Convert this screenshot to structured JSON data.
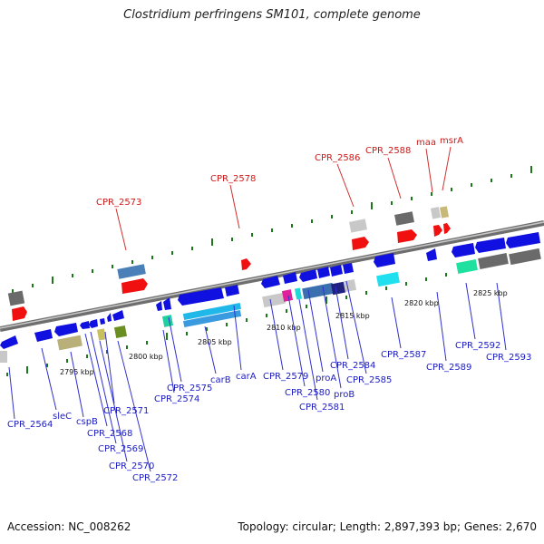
{
  "title": "Clostridium perfringens SM101, complete genome",
  "footer": {
    "accession": "Accession: NC_008262",
    "info": "Topology: circular; Length: 2,897,393 bp; Genes: 2,670"
  },
  "colors": {
    "backbone": "#8a8a8a",
    "gene_blue": "#1010e0",
    "gene_red": "#f01010",
    "label_blue": "#1b1bc4",
    "label_red": "#d01818",
    "tick_green": "#1a7a1a"
  },
  "kbp_labels": [
    "2795 kbp",
    "2800 kbp",
    "2805 kbp",
    "2810 kbp",
    "2815 kbp",
    "2820 kbp",
    "2825 kbp"
  ],
  "labels_bottom": [
    "CPR_2564",
    "sleC",
    "cspB",
    "CPR_2568",
    "CPR_2569",
    "CPR_2570",
    "CPR_2571",
    "CPR_2572",
    "CPR_2574",
    "CPR_2575",
    "carB",
    "carA",
    "CPR_2579",
    "CPR_2580",
    "CPR_2581",
    "proA",
    "proB",
    "CPR_2584",
    "CPR_2585",
    "CPR_2587",
    "CPR_2589",
    "CPR_2592",
    "CPR_2593"
  ],
  "labels_top": [
    "CPR_2573",
    "CPR_2578",
    "CPR_2586",
    "CPR_2588",
    "maa",
    "msrA"
  ]
}
